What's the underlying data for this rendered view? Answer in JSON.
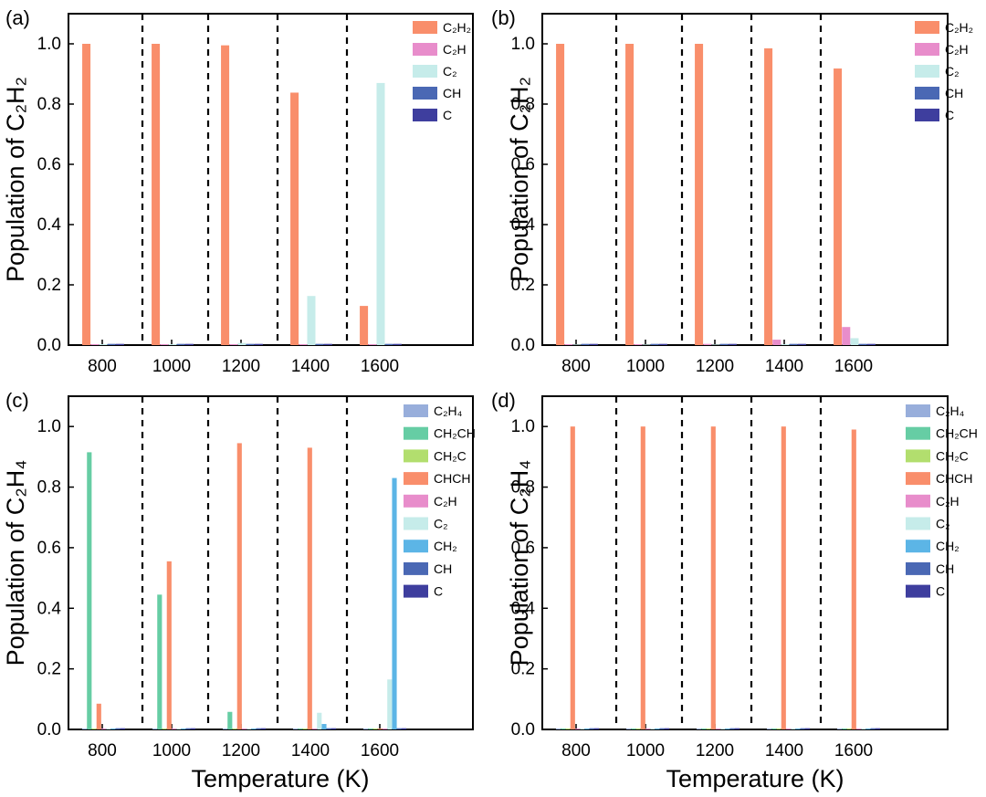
{
  "figure": {
    "xlabel": "Temperature (K)"
  },
  "chart_data": [
    {
      "type": "bar",
      "label": "(a)",
      "ylabel": "Population of C₂H₂",
      "ylim": [
        0,
        1.1
      ],
      "yticks": [
        "0.0",
        "0.2",
        "0.4",
        "0.6",
        "0.8",
        "1.0"
      ],
      "categories": [
        "800",
        "1000",
        "1200",
        "1400",
        "1600"
      ],
      "series": [
        {
          "name": "C₂H₂",
          "color": "#F98E6B",
          "values": [
            1.0,
            1.0,
            0.995,
            0.838,
            0.13
          ]
        },
        {
          "name": "C₂H",
          "color": "#E88DCB",
          "values": [
            0.003,
            0.003,
            0.003,
            0.003,
            0.003
          ]
        },
        {
          "name": "C₂",
          "color": "#C6ECEA",
          "values": [
            0.003,
            0.003,
            0.007,
            0.163,
            0.87
          ]
        },
        {
          "name": "CH",
          "color": "#4A68B4",
          "values": [
            0.004,
            0.004,
            0.004,
            0.004,
            0.004
          ]
        },
        {
          "name": "C",
          "color": "#3E3E9E",
          "values": [
            0.004,
            0.004,
            0.004,
            0.004,
            0.004
          ]
        }
      ]
    },
    {
      "type": "bar",
      "label": "(b)",
      "ylabel": "Population of C₂H₂",
      "ylim": [
        0,
        1.1
      ],
      "yticks": [
        "0.0",
        "0.2",
        "0.4",
        "0.6",
        "0.8",
        "1.0"
      ],
      "categories": [
        "800",
        "1000",
        "1200",
        "1400",
        "1600"
      ],
      "series": [
        {
          "name": "C₂H₂",
          "color": "#F98E6B",
          "values": [
            1.0,
            1.0,
            1.0,
            0.985,
            0.918
          ]
        },
        {
          "name": "C₂H",
          "color": "#E88DCB",
          "values": [
            0.003,
            0.003,
            0.004,
            0.018,
            0.06
          ]
        },
        {
          "name": "C₂",
          "color": "#C6ECEA",
          "values": [
            0.002,
            0.002,
            0.002,
            0.003,
            0.023
          ]
        },
        {
          "name": "CH",
          "color": "#4A68B4",
          "values": [
            0.004,
            0.004,
            0.004,
            0.004,
            0.004
          ]
        },
        {
          "name": "C",
          "color": "#3E3E9E",
          "values": [
            0.004,
            0.004,
            0.004,
            0.004,
            0.004
          ]
        }
      ]
    },
    {
      "type": "bar",
      "label": "(c)",
      "ylabel": "Population of C₂H₄",
      "ylim": [
        0,
        1.1
      ],
      "yticks": [
        "0.0",
        "0.2",
        "0.4",
        "0.6",
        "0.8",
        "1.0"
      ],
      "categories": [
        "800",
        "1000",
        "1200",
        "1400",
        "1600"
      ],
      "series": [
        {
          "name": "C₂H₄",
          "color": "#98AEDB",
          "values": [
            0.003,
            0.003,
            0.003,
            0.003,
            0.003
          ]
        },
        {
          "name": "CH₂CH",
          "color": "#66CDA4",
          "values": [
            0.915,
            0.445,
            0.058,
            0.003,
            0.003
          ]
        },
        {
          "name": "CH₂C",
          "color": "#B2DE6E",
          "values": [
            0.003,
            0.003,
            0.003,
            0.003,
            0.003
          ]
        },
        {
          "name": "CHCH",
          "color": "#F98E6B",
          "values": [
            0.085,
            0.555,
            0.945,
            0.93,
            0.003
          ]
        },
        {
          "name": "C₂H",
          "color": "#E88DCB",
          "values": [
            0.003,
            0.003,
            0.003,
            0.003,
            0.003
          ]
        },
        {
          "name": "C₂",
          "color": "#C6ECEA",
          "values": [
            0.003,
            0.003,
            0.003,
            0.055,
            0.165
          ]
        },
        {
          "name": "CH₂",
          "color": "#5CB5E6",
          "values": [
            0.003,
            0.003,
            0.003,
            0.018,
            0.83
          ]
        },
        {
          "name": "CH",
          "color": "#4A68B4",
          "values": [
            0.004,
            0.004,
            0.004,
            0.004,
            0.004
          ]
        },
        {
          "name": "C",
          "color": "#3E3E9E",
          "values": [
            0.004,
            0.004,
            0.004,
            0.004,
            0.004
          ]
        }
      ]
    },
    {
      "type": "bar",
      "label": "(d)",
      "ylabel": "Population of C₂H₄",
      "ylim": [
        0,
        1.1
      ],
      "yticks": [
        "0.0",
        "0.2",
        "0.4",
        "0.6",
        "0.8",
        "1.0"
      ],
      "categories": [
        "800",
        "1000",
        "1200",
        "1400",
        "1600"
      ],
      "series": [
        {
          "name": "C₂H₄",
          "color": "#98AEDB",
          "values": [
            0.003,
            0.003,
            0.003,
            0.003,
            0.003
          ]
        },
        {
          "name": "CH₂CH",
          "color": "#66CDA4",
          "values": [
            0.003,
            0.003,
            0.003,
            0.003,
            0.003
          ]
        },
        {
          "name": "CH₂C",
          "color": "#B2DE6E",
          "values": [
            0.003,
            0.003,
            0.003,
            0.003,
            0.003
          ]
        },
        {
          "name": "CHCH",
          "color": "#F98E6B",
          "values": [
            1.0,
            1.0,
            1.0,
            1.0,
            0.99
          ]
        },
        {
          "name": "C₂H",
          "color": "#E88DCB",
          "values": [
            0.003,
            0.003,
            0.003,
            0.003,
            0.003
          ]
        },
        {
          "name": "C₂",
          "color": "#C6ECEA",
          "values": [
            0.003,
            0.003,
            0.003,
            0.003,
            0.003
          ]
        },
        {
          "name": "CH₂",
          "color": "#5CB5E6",
          "values": [
            0.003,
            0.003,
            0.003,
            0.003,
            0.003
          ]
        },
        {
          "name": "CH",
          "color": "#4A68B4",
          "values": [
            0.004,
            0.004,
            0.004,
            0.004,
            0.004
          ]
        },
        {
          "name": "C",
          "color": "#3E3E9E",
          "values": [
            0.004,
            0.004,
            0.004,
            0.004,
            0.004
          ]
        }
      ]
    }
  ]
}
